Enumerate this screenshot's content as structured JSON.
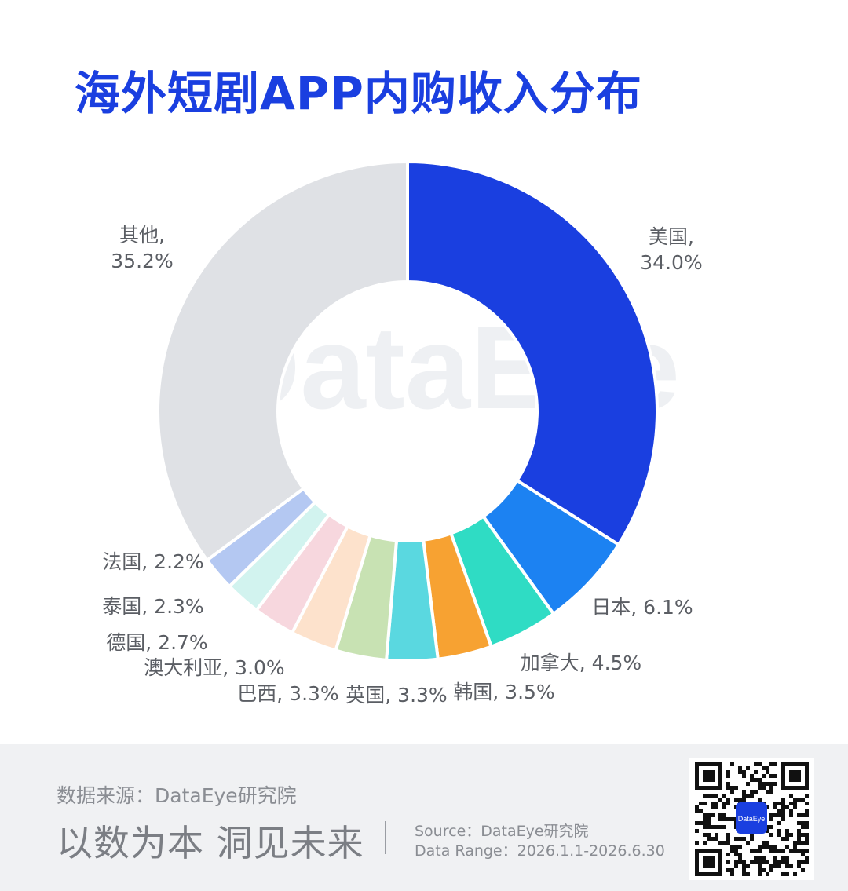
{
  "title": "海外短剧APP内购收入分布",
  "watermark": "DataEye",
  "chart_data": {
    "type": "pie",
    "title": "海外短剧APP内购收入分布",
    "unit": "%",
    "donut": true,
    "slices": [
      {
        "label": "美国",
        "value": 34.0,
        "display": "美国, 34.0%",
        "color": "#1a3fe0"
      },
      {
        "label": "日本",
        "value": 6.1,
        "display": "日本, 6.1%",
        "color": "#1c82f2"
      },
      {
        "label": "加拿大",
        "value": 4.5,
        "display": "加拿大, 4.5%",
        "color": "#2fdcc4"
      },
      {
        "label": "韩国",
        "value": 3.5,
        "display": "韩国, 3.5%",
        "color": "#f7a232"
      },
      {
        "label": "英国",
        "value": 3.3,
        "display": "英国, 3.3%",
        "color": "#5ad8e0"
      },
      {
        "label": "巴西",
        "value": 3.3,
        "display": "巴西, 3.3%",
        "color": "#c8e2b3"
      },
      {
        "label": "澳大利亚",
        "value": 3.0,
        "display": "澳大利亚, 3.0%",
        "color": "#fde2cc"
      },
      {
        "label": "德国",
        "value": 2.7,
        "display": "德国, 2.7%",
        "color": "#f7d7de"
      },
      {
        "label": "泰国",
        "value": 2.3,
        "display": "泰国, 2.3%",
        "color": "#d2f3ef"
      },
      {
        "label": "法国",
        "value": 2.2,
        "display": "法国, 2.2%",
        "color": "#b4c8f2"
      },
      {
        "label": "其他",
        "value": 35.2,
        "display_name": "其他,",
        "display_value": "35.2%",
        "color": "#dfe1e5"
      }
    ],
    "top_label": {
      "name": "美国,",
      "value": "34.0%"
    }
  },
  "footer": {
    "source_cn": "数据来源：DataEye研究院",
    "slogan": "以数为本 洞见未来",
    "source_en": "Source：DataEye研究院",
    "date_range": "Data Range：2026.1.1-2026.6.30",
    "qr_badge": "DataEye"
  }
}
